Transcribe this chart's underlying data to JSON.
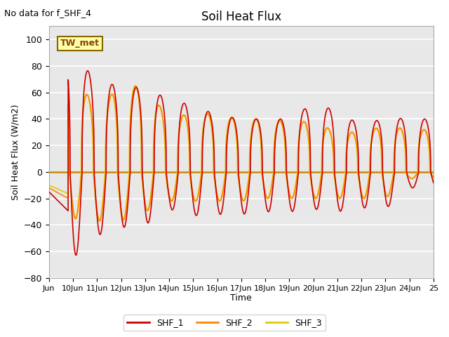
{
  "title": "Soil Heat Flux",
  "annotation_text": "No data for f_SHF_4",
  "ylabel": "Soil Heat Flux (W/m2)",
  "xlabel": "Time",
  "ylim": [
    -80,
    110
  ],
  "yticks": [
    -80,
    -60,
    -40,
    -20,
    0,
    20,
    40,
    60,
    80,
    100
  ],
  "plot_bg_color": "#e8e8e8",
  "fig_bg_color": "#ffffff",
  "line_colors": {
    "SHF_1": "#cc0000",
    "SHF_2": "#ff8800",
    "SHF_3": "#ddcc00"
  },
  "tw_met_label": "TW_met",
  "zero_line_color": "#cc8800",
  "x_start_day": 9.0,
  "x_end_day": 25.0,
  "xtick_days": [
    9,
    10,
    11,
    12,
    13,
    14,
    15,
    16,
    17,
    18,
    19,
    20,
    21,
    22,
    23,
    24,
    25
  ],
  "xtick_labels": [
    "Jun",
    "10Jun",
    "11Jun",
    "12Jun",
    "13Jun",
    "14Jun",
    "15Jun",
    "16Jun",
    "17Jun",
    "18Jun",
    "19Jun",
    "20Jun",
    "21Jun",
    "22Jun",
    "23Jun",
    "24Jun",
    "25"
  ]
}
